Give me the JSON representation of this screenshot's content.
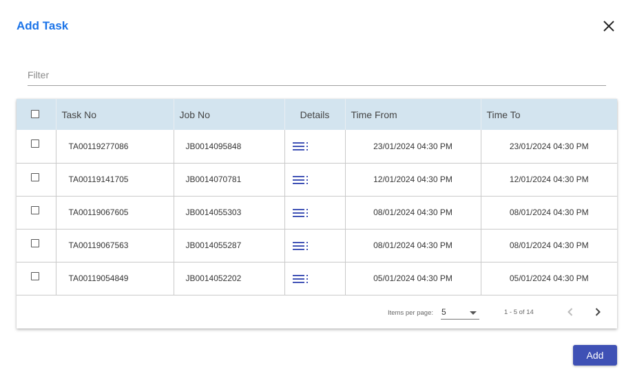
{
  "dialog": {
    "title": "Add Task",
    "close_icon": "close-icon"
  },
  "filter": {
    "placeholder": "Filter",
    "value": ""
  },
  "table": {
    "headers": {
      "task_no": "Task No",
      "job_no": "Job No",
      "details": "Details",
      "time_from": "Time From",
      "time_to": "Time To"
    },
    "rows": [
      {
        "task_no": "TA00119277086",
        "job_no": "JB0014095848",
        "time_from": "23/01/2024 04:30 PM",
        "time_to": "23/01/2024 04:30 PM",
        "checked": false
      },
      {
        "task_no": "TA00119141705",
        "job_no": "JB0014070781",
        "time_from": "12/01/2024 04:30 PM",
        "time_to": "12/01/2024 04:30 PM",
        "checked": false
      },
      {
        "task_no": "TA00119067605",
        "job_no": "JB0014055303",
        "time_from": "08/01/2024 04:30 PM",
        "time_to": "08/01/2024 04:30 PM",
        "checked": false
      },
      {
        "task_no": "TA00119067563",
        "job_no": "JB0014055287",
        "time_from": "08/01/2024 04:30 PM",
        "time_to": "08/01/2024 04:30 PM",
        "checked": false
      },
      {
        "task_no": "TA00119054849",
        "job_no": "JB0014052202",
        "time_from": "05/01/2024 04:30 PM",
        "time_to": "05/01/2024 04:30 PM",
        "checked": false
      }
    ],
    "details_icon": "list-details-icon"
  },
  "paginator": {
    "items_per_page_label": "Items per page:",
    "items_per_page": "5",
    "range_label": "1 - 5 of 14",
    "prev_icon": "chevron-left-icon",
    "next_icon": "chevron-right-icon"
  },
  "actions": {
    "add_label": "Add"
  },
  "colors": {
    "title": "#1a73e8",
    "header_bg": "#d3e4ef",
    "primary_button": "#3f51b5",
    "details_icon": "#3f51b5"
  }
}
